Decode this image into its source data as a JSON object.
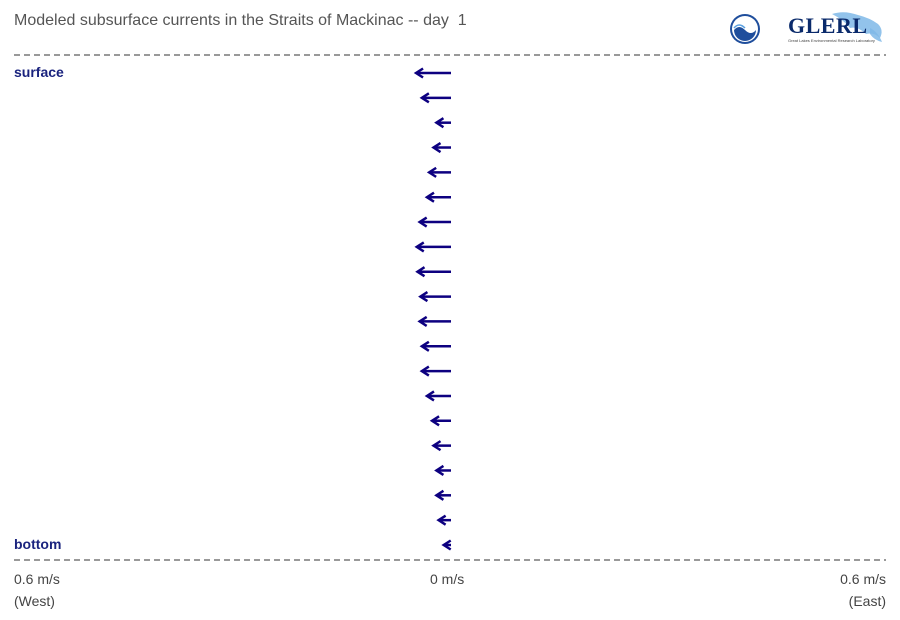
{
  "title": "Modeled subsurface currents in the Straits of Mackinac -- day  1",
  "logos": {
    "noaa": "NOAA",
    "glerl": "GLERL",
    "glerl_subtitle": "Great Lakes Environmental Research Laboratory"
  },
  "labels": {
    "surface": "surface",
    "bottom": "bottom",
    "left_speed": "0.6 m/s",
    "left_dir": "(West)",
    "center_speed": "0 m/s",
    "right_speed": "0.6 m/s",
    "right_dir": "(East)"
  },
  "colors": {
    "arrow": "#0d0080",
    "text": "#1a237e",
    "dash": "#333333"
  },
  "chart_data": {
    "type": "vector-profile",
    "title": "Modeled subsurface currents in the Straits of Mackinac -- day  1",
    "x_unit": "m/s",
    "x_range": [
      -0.6,
      0.6
    ],
    "depth_order": "surface to bottom",
    "eastward_velocity": [
      -0.048,
      -0.04,
      -0.02,
      -0.024,
      -0.03,
      -0.033,
      -0.043,
      -0.047,
      -0.046,
      -0.042,
      -0.043,
      -0.04,
      -0.04,
      -0.033,
      -0.026,
      -0.024,
      -0.02,
      -0.02,
      -0.017,
      -0.01
    ]
  }
}
